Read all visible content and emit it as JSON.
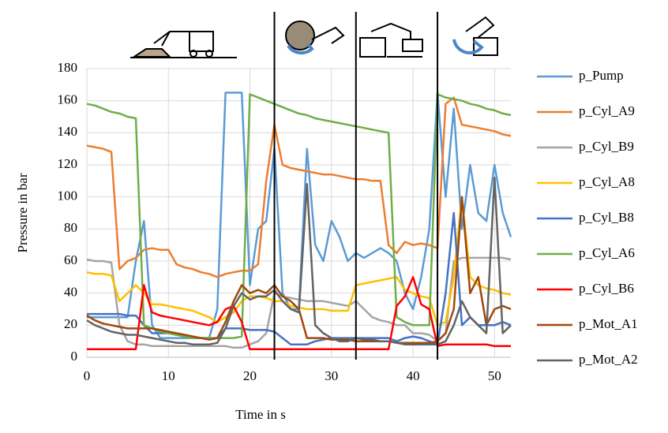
{
  "chart_data": {
    "type": "line",
    "xlabel": "Time in s",
    "ylabel": "Pressure in bar",
    "xlim": [
      0,
      52
    ],
    "ylim": [
      0,
      180
    ],
    "xticks": [
      0,
      10,
      20,
      30,
      40,
      50
    ],
    "yticks": [
      0,
      20,
      40,
      60,
      80,
      100,
      120,
      140,
      160,
      180
    ],
    "grid": true,
    "legend": "right",
    "phase_lines": [
      23,
      33,
      43
    ],
    "x": [
      0,
      1,
      2,
      3,
      4,
      5,
      6,
      7,
      8,
      9,
      10,
      11,
      12,
      13,
      14,
      15,
      16,
      17,
      18,
      19,
      20,
      21,
      22,
      23,
      24,
      25,
      26,
      27,
      28,
      29,
      30,
      31,
      32,
      33,
      34,
      35,
      36,
      37,
      38,
      39,
      40,
      41,
      42,
      43,
      44,
      45,
      46,
      47,
      48,
      49,
      50,
      51,
      52
    ],
    "series": [
      {
        "name": "p_Pump",
        "color": "#5b9bd5",
        "values": [
          25,
          25,
          25,
          25,
          25,
          25,
          60,
          85,
          20,
          12,
          12,
          12,
          12,
          12,
          12,
          12,
          30,
          165,
          165,
          165,
          45,
          80,
          85,
          130,
          40,
          30,
          30,
          130,
          70,
          60,
          85,
          75,
          60,
          65,
          62,
          65,
          68,
          65,
          60,
          40,
          30,
          50,
          80,
          165,
          100,
          155,
          80,
          120,
          90,
          85,
          120,
          90,
          75
        ]
      },
      {
        "name": "p_Cyl_A9",
        "color": "#ed7d31",
        "values": [
          132,
          131,
          130,
          128,
          55,
          60,
          62,
          67,
          68,
          67,
          67,
          58,
          56,
          55,
          53,
          52,
          50,
          52,
          53,
          54,
          54,
          58,
          110,
          145,
          120,
          118,
          117,
          116,
          115,
          114,
          114,
          113,
          112,
          111,
          111,
          110,
          110,
          70,
          65,
          72,
          70,
          71,
          70,
          68,
          158,
          162,
          145,
          144,
          143,
          142,
          141,
          139,
          138
        ]
      },
      {
        "name": "p_Cyl_B9",
        "color": "#a5a5a5",
        "values": [
          61,
          60,
          60,
          59,
          20,
          10,
          8,
          8,
          7,
          7,
          7,
          7,
          7,
          7,
          7,
          7,
          7,
          7,
          6,
          6,
          8,
          10,
          15,
          40,
          38,
          37,
          36,
          35,
          35,
          35,
          34,
          33,
          32,
          35,
          30,
          25,
          23,
          22,
          20,
          20,
          15,
          15,
          14,
          10,
          15,
          60,
          62,
          62,
          62,
          62,
          62,
          62,
          61
        ]
      },
      {
        "name": "p_Cyl_A8",
        "color": "#ffc000",
        "values": [
          53,
          52,
          52,
          51,
          35,
          40,
          45,
          40,
          33,
          33,
          32,
          31,
          30,
          29,
          27,
          25,
          22,
          25,
          28,
          35,
          38,
          38,
          37,
          35,
          35,
          32,
          31,
          30,
          30,
          30,
          29,
          29,
          29,
          45,
          46,
          47,
          48,
          49,
          50,
          42,
          40,
          38,
          37,
          20,
          22,
          50,
          100,
          50,
          45,
          43,
          42,
          40,
          39
        ]
      },
      {
        "name": "p_Cyl_B8",
        "color": "#4472c4",
        "values": [
          27,
          27,
          27,
          27,
          27,
          26,
          26,
          20,
          15,
          15,
          15,
          14,
          13,
          12,
          12,
          12,
          12,
          18,
          18,
          18,
          17,
          17,
          17,
          16,
          12,
          8,
          8,
          8,
          10,
          11,
          12,
          12,
          12,
          12,
          12,
          12,
          12,
          12,
          10,
          12,
          13,
          12,
          10,
          8,
          40,
          90,
          20,
          25,
          20,
          20,
          20,
          22,
          20
        ]
      },
      {
        "name": "p_Cyl_A6",
        "color": "#70ad47",
        "values": [
          158,
          157,
          155,
          153,
          152,
          150,
          149,
          20,
          18,
          16,
          15,
          14,
          13,
          12,
          12,
          12,
          12,
          12,
          12,
          13,
          164,
          162,
          160,
          158,
          156,
          154,
          152,
          151,
          149,
          148,
          147,
          146,
          145,
          144,
          143,
          142,
          141,
          140,
          25,
          22,
          20,
          20,
          20,
          164,
          162,
          161,
          160,
          158,
          157,
          155,
          154,
          152,
          151
        ]
      },
      {
        "name": "p_Cyl_B6",
        "color": "#ff0000",
        "values": [
          5,
          5,
          5,
          5,
          5,
          5,
          5,
          45,
          28,
          26,
          25,
          24,
          23,
          22,
          21,
          20,
          22,
          30,
          32,
          22,
          5,
          5,
          5,
          5,
          5,
          5,
          5,
          5,
          5,
          5,
          5,
          5,
          5,
          5,
          5,
          5,
          5,
          5,
          32,
          38,
          50,
          33,
          30,
          7,
          8,
          8,
          8,
          8,
          8,
          8,
          7,
          7,
          7
        ]
      },
      {
        "name": "p_Mot_A1",
        "color": "#9e480e",
        "values": [
          26,
          23,
          21,
          20,
          19,
          18,
          18,
          18,
          18,
          17,
          16,
          15,
          14,
          13,
          12,
          11,
          12,
          22,
          35,
          45,
          40,
          42,
          40,
          45,
          38,
          35,
          30,
          12,
          12,
          12,
          11,
          11,
          11,
          10,
          10,
          10,
          10,
          10,
          9,
          9,
          9,
          9,
          9,
          10,
          15,
          30,
          100,
          40,
          50,
          20,
          30,
          32,
          30
        ]
      },
      {
        "name": "p_Mot_A2",
        "color": "#636363",
        "values": [
          23,
          20,
          18,
          16,
          15,
          14,
          14,
          13,
          12,
          11,
          10,
          9,
          9,
          8,
          8,
          8,
          9,
          18,
          32,
          40,
          36,
          38,
          38,
          42,
          35,
          30,
          28,
          108,
          20,
          15,
          12,
          10,
          10,
          12,
          11,
          11,
          10,
          10,
          9,
          8,
          8,
          8,
          8,
          8,
          10,
          20,
          35,
          25,
          20,
          15,
          112,
          15,
          20
        ]
      }
    ]
  }
}
